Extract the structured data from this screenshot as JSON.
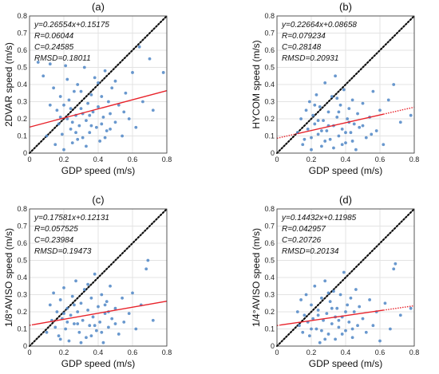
{
  "chart_data": [
    {
      "type": "scatter",
      "title": "(a)",
      "xlabel": "GDP speed (m/s)",
      "ylabel": "2DVAR speed (m/s)",
      "xlim": [
        0,
        0.8
      ],
      "ylim": [
        0,
        0.8
      ],
      "xticks": [
        "0",
        "0.2",
        "0.4",
        "0.6",
        "0.8"
      ],
      "yticks": [
        "0",
        "0.1",
        "0.2",
        "0.3",
        "0.4",
        "0.5",
        "0.6",
        "0.7",
        "0.8"
      ],
      "grid": true,
      "stats": [
        "y=0.26554x+0.15175",
        "R=0.06044",
        "C=0.24585",
        "RMSD=0.18011"
      ],
      "fit": {
        "slope": 0.26554,
        "intercept": 0.15175,
        "solid_x": [
          0,
          0.8
        ],
        "dotted_x": null
      },
      "identity_line": true,
      "points": [
        [
          0.05,
          0.53
        ],
        [
          0.08,
          0.45
        ],
        [
          0.12,
          0.52
        ],
        [
          0.14,
          0.38
        ],
        [
          0.16,
          0.25
        ],
        [
          0.17,
          0.17
        ],
        [
          0.18,
          0.21
        ],
        [
          0.19,
          0.11
        ],
        [
          0.2,
          0.28
        ],
        [
          0.21,
          0.51
        ],
        [
          0.22,
          0.2
        ],
        [
          0.23,
          0.31
        ],
        [
          0.24,
          0.14
        ],
        [
          0.25,
          0.06
        ],
        [
          0.26,
          0.36
        ],
        [
          0.27,
          0.22
        ],
        [
          0.28,
          0.4
        ],
        [
          0.29,
          0.16
        ],
        [
          0.3,
          0.26
        ],
        [
          0.31,
          0.09
        ],
        [
          0.32,
          0.5
        ],
        [
          0.33,
          0.19
        ],
        [
          0.34,
          0.29
        ],
        [
          0.35,
          0.12
        ],
        [
          0.36,
          0.34
        ],
        [
          0.37,
          0.24
        ],
        [
          0.38,
          0.44
        ],
        [
          0.39,
          0.15
        ],
        [
          0.4,
          0.27
        ],
        [
          0.41,
          0.07
        ],
        [
          0.42,
          0.33
        ],
        [
          0.43,
          0.21
        ],
        [
          0.44,
          0.48
        ],
        [
          0.45,
          0.13
        ],
        [
          0.46,
          0.3
        ],
        [
          0.47,
          0.23
        ],
        [
          0.48,
          0.38
        ],
        [
          0.5,
          0.18
        ],
        [
          0.52,
          0.28
        ],
        [
          0.54,
          0.1
        ],
        [
          0.56,
          0.35
        ],
        [
          0.58,
          0.2
        ],
        [
          0.6,
          0.47
        ],
        [
          0.62,
          0.15
        ],
        [
          0.64,
          0.62
        ],
        [
          0.66,
          0.3
        ],
        [
          0.7,
          0.55
        ],
        [
          0.72,
          0.25
        ],
        [
          0.78,
          0.47
        ],
        [
          0.1,
          0.1
        ],
        [
          0.12,
          0.28
        ],
        [
          0.15,
          0.05
        ],
        [
          0.2,
          0.02
        ],
        [
          0.22,
          0.43
        ],
        [
          0.25,
          0.18
        ],
        [
          0.28,
          0.08
        ],
        [
          0.3,
          0.36
        ],
        [
          0.33,
          0.04
        ],
        [
          0.36,
          0.16
        ],
        [
          0.4,
          0.41
        ],
        [
          0.44,
          0.09
        ],
        [
          0.47,
          0.14
        ],
        [
          0.5,
          0.42
        ],
        [
          0.55,
          0.24
        ],
        [
          0.18,
          0.33
        ],
        [
          0.24,
          0.26
        ],
        [
          0.35,
          0.22
        ],
        [
          0.42,
          0.17
        ],
        [
          0.27,
          0.12
        ],
        [
          0.31,
          0.23
        ]
      ]
    },
    {
      "type": "scatter",
      "title": "(b)",
      "xlabel": "GDP speed (m/s)",
      "ylabel": "HYCOM speed (m/s)",
      "xlim": [
        0,
        0.8
      ],
      "ylim": [
        0,
        0.8
      ],
      "xticks": [
        "0",
        "0.2",
        "0.4",
        "0.6",
        "0.8"
      ],
      "yticks": [
        "0",
        "0.1",
        "0.2",
        "0.3",
        "0.4",
        "0.5",
        "0.6",
        "0.7",
        "0.8"
      ],
      "grid": true,
      "stats": [
        "y=0.22664x+0.08658",
        "R=0.079234",
        "C=0.28148",
        "RMSD=0.20931"
      ],
      "fit": {
        "slope": 0.22664,
        "intercept": 0.08658,
        "solid_x": [
          0.12,
          0.62
        ],
        "dotted_x": [
          [
            0,
            0.12
          ],
          [
            0.62,
            0.8
          ]
        ]
      },
      "identity_line": true,
      "points": [
        [
          0.12,
          0.12
        ],
        [
          0.14,
          0.2
        ],
        [
          0.15,
          0.05
        ],
        [
          0.17,
          0.25
        ],
        [
          0.18,
          0.14
        ],
        [
          0.19,
          0.3
        ],
        [
          0.2,
          0.09
        ],
        [
          0.21,
          0.22
        ],
        [
          0.22,
          0.17
        ],
        [
          0.23,
          0.34
        ],
        [
          0.24,
          0.11
        ],
        [
          0.25,
          0.27
        ],
        [
          0.26,
          0.04
        ],
        [
          0.27,
          0.19
        ],
        [
          0.28,
          0.41
        ],
        [
          0.29,
          0.13
        ],
        [
          0.3,
          0.24
        ],
        [
          0.31,
          0.08
        ],
        [
          0.32,
          0.33
        ],
        [
          0.33,
          0.16
        ],
        [
          0.34,
          0.45
        ],
        [
          0.35,
          0.21
        ],
        [
          0.36,
          0.1
        ],
        [
          0.37,
          0.28
        ],
        [
          0.38,
          0.14
        ],
        [
          0.39,
          0.37
        ],
        [
          0.4,
          0.06
        ],
        [
          0.41,
          0.2
        ],
        [
          0.42,
          0.26
        ],
        [
          0.43,
          0.12
        ],
        [
          0.44,
          0.31
        ],
        [
          0.45,
          0.17
        ],
        [
          0.46,
          0.02
        ],
        [
          0.47,
          0.23
        ],
        [
          0.48,
          0.15
        ],
        [
          0.5,
          0.29
        ],
        [
          0.52,
          0.09
        ],
        [
          0.54,
          0.21
        ],
        [
          0.56,
          0.36
        ],
        [
          0.58,
          0.13
        ],
        [
          0.6,
          0.25
        ],
        [
          0.62,
          0.05
        ],
        [
          0.65,
          0.31
        ],
        [
          0.68,
          0.4
        ],
        [
          0.72,
          0.18
        ],
        [
          0.78,
          0.22
        ],
        [
          0.16,
          0.08
        ],
        [
          0.2,
          0.02
        ],
        [
          0.24,
          0.19
        ],
        [
          0.28,
          0.07
        ],
        [
          0.3,
          0.16
        ],
        [
          0.33,
          0.03
        ],
        [
          0.36,
          0.24
        ],
        [
          0.4,
          0.12
        ],
        [
          0.44,
          0.07
        ],
        [
          0.5,
          0.16
        ],
        [
          0.55,
          0.11
        ],
        [
          0.22,
          0.28
        ],
        [
          0.26,
          0.13
        ],
        [
          0.35,
          0.32
        ],
        [
          0.42,
          0.18
        ],
        [
          0.38,
          0.05
        ]
      ]
    },
    {
      "type": "scatter",
      "title": "(c)",
      "xlabel": "GDP speed (m/s)",
      "ylabel": "1/8°AVISO speed (m/s)",
      "xlim": [
        0,
        0.8
      ],
      "ylim": [
        0,
        0.8
      ],
      "xticks": [
        "0",
        "0.2",
        "0.4",
        "0.6",
        "0.8"
      ],
      "yticks": [
        "0",
        "0.1",
        "0.2",
        "0.3",
        "0.4",
        "0.5",
        "0.6",
        "0.7",
        "0.8"
      ],
      "grid": true,
      "stats": [
        "y=0.17581x+0.12131",
        "R=0.057525",
        "C=0.23984",
        "RMSD=0.19473"
      ],
      "fit": {
        "slope": 0.17581,
        "intercept": 0.12131,
        "solid_x": [
          0.02,
          0.8
        ],
        "dotted_x": [
          [
            0,
            0.02
          ]
        ]
      },
      "identity_line": true,
      "points": [
        [
          0.1,
          0.08
        ],
        [
          0.12,
          0.24
        ],
        [
          0.13,
          0.15
        ],
        [
          0.14,
          0.31
        ],
        [
          0.15,
          0.11
        ],
        [
          0.16,
          0.2
        ],
        [
          0.17,
          0.06
        ],
        [
          0.18,
          0.27
        ],
        [
          0.19,
          0.16
        ],
        [
          0.2,
          0.34
        ],
        [
          0.21,
          0.1
        ],
        [
          0.22,
          0.22
        ],
        [
          0.23,
          0.03
        ],
        [
          0.24,
          0.18
        ],
        [
          0.25,
          0.29
        ],
        [
          0.26,
          0.13
        ],
        [
          0.27,
          0.38
        ],
        [
          0.28,
          0.2
        ],
        [
          0.29,
          0.08
        ],
        [
          0.3,
          0.25
        ],
        [
          0.31,
          0.15
        ],
        [
          0.32,
          0.33
        ],
        [
          0.33,
          0.05
        ],
        [
          0.34,
          0.21
        ],
        [
          0.35,
          0.12
        ],
        [
          0.36,
          0.28
        ],
        [
          0.37,
          0.17
        ],
        [
          0.38,
          0.42
        ],
        [
          0.39,
          0.09
        ],
        [
          0.4,
          0.23
        ],
        [
          0.41,
          0.14
        ],
        [
          0.42,
          0.3
        ],
        [
          0.43,
          0.02
        ],
        [
          0.44,
          0.19
        ],
        [
          0.45,
          0.26
        ],
        [
          0.46,
          0.11
        ],
        [
          0.47,
          0.35
        ],
        [
          0.48,
          0.16
        ],
        [
          0.5,
          0.22
        ],
        [
          0.52,
          0.07
        ],
        [
          0.54,
          0.28
        ],
        [
          0.55,
          0.14
        ],
        [
          0.58,
          0.19
        ],
        [
          0.6,
          0.31
        ],
        [
          0.62,
          0.1
        ],
        [
          0.65,
          0.24
        ],
        [
          0.68,
          0.45
        ],
        [
          0.69,
          0.5
        ],
        [
          0.72,
          0.15
        ],
        [
          0.18,
          0.04
        ],
        [
          0.22,
          0.14
        ],
        [
          0.26,
          0.24
        ],
        [
          0.3,
          0.02
        ],
        [
          0.34,
          0.36
        ],
        [
          0.38,
          0.12
        ],
        [
          0.42,
          0.08
        ],
        [
          0.46,
          0.2
        ],
        [
          0.5,
          0.13
        ],
        [
          0.2,
          0.19
        ],
        [
          0.28,
          0.13
        ],
        [
          0.36,
          0.06
        ],
        [
          0.44,
          0.24
        ]
      ]
    },
    {
      "type": "scatter",
      "title": "(d)",
      "xlabel": "GDP speed (m/s)",
      "ylabel": "1/4°AVISO speed (m/s)",
      "xlim": [
        0,
        0.8
      ],
      "ylim": [
        0,
        0.8
      ],
      "xticks": [
        "0",
        "0.2",
        "0.4",
        "0.6",
        "0.8"
      ],
      "yticks": [
        "0",
        "0.1",
        "0.2",
        "0.3",
        "0.4",
        "0.5",
        "0.6",
        "0.7",
        "0.8"
      ],
      "grid": true,
      "stats": [
        "y=0.14432x+0.11985",
        "R=0.042957",
        "C=0.20726",
        "RMSD=0.20134"
      ],
      "fit": {
        "slope": 0.14432,
        "intercept": 0.11985,
        "solid_x": [
          0.02,
          0.62
        ],
        "dotted_x": [
          [
            0,
            0.02
          ],
          [
            0.62,
            0.8
          ]
        ]
      },
      "identity_line": true,
      "points": [
        [
          0.12,
          0.2
        ],
        [
          0.13,
          0.12
        ],
        [
          0.14,
          0.27
        ],
        [
          0.15,
          0.08
        ],
        [
          0.16,
          0.18
        ],
        [
          0.17,
          0.3
        ],
        [
          0.18,
          0.14
        ],
        [
          0.19,
          0.06
        ],
        [
          0.2,
          0.24
        ],
        [
          0.21,
          0.16
        ],
        [
          0.22,
          0.35
        ],
        [
          0.23,
          0.1
        ],
        [
          0.24,
          0.21
        ],
        [
          0.25,
          0.02
        ],
        [
          0.26,
          0.28
        ],
        [
          0.27,
          0.15
        ],
        [
          0.28,
          0.38
        ],
        [
          0.29,
          0.19
        ],
        [
          0.3,
          0.07
        ],
        [
          0.31,
          0.26
        ],
        [
          0.32,
          0.13
        ],
        [
          0.33,
          0.32
        ],
        [
          0.34,
          0.04
        ],
        [
          0.35,
          0.22
        ],
        [
          0.36,
          0.11
        ],
        [
          0.37,
          0.3
        ],
        [
          0.38,
          0.17
        ],
        [
          0.39,
          0.43
        ],
        [
          0.4,
          0.09
        ],
        [
          0.41,
          0.24
        ],
        [
          0.42,
          0.14
        ],
        [
          0.43,
          0.28
        ],
        [
          0.44,
          0.05
        ],
        [
          0.45,
          0.2
        ],
        [
          0.46,
          0.33
        ],
        [
          0.47,
          0.12
        ],
        [
          0.48,
          0.23
        ],
        [
          0.5,
          0.16
        ],
        [
          0.52,
          0.08
        ],
        [
          0.54,
          0.27
        ],
        [
          0.56,
          0.12
        ],
        [
          0.58,
          0.2
        ],
        [
          0.6,
          0.03
        ],
        [
          0.63,
          0.25
        ],
        [
          0.66,
          0.1
        ],
        [
          0.68,
          0.45
        ],
        [
          0.69,
          0.48
        ],
        [
          0.72,
          0.18
        ],
        [
          0.78,
          0.22
        ],
        [
          0.2,
          0.1
        ],
        [
          0.24,
          0.18
        ],
        [
          0.28,
          0.04
        ],
        [
          0.32,
          0.22
        ],
        [
          0.36,
          0.15
        ],
        [
          0.4,
          0.2
        ],
        [
          0.44,
          0.1
        ],
        [
          0.26,
          0.09
        ],
        [
          0.34,
          0.17
        ],
        [
          0.3,
          0.31
        ],
        [
          0.38,
          0.07
        ]
      ]
    }
  ]
}
